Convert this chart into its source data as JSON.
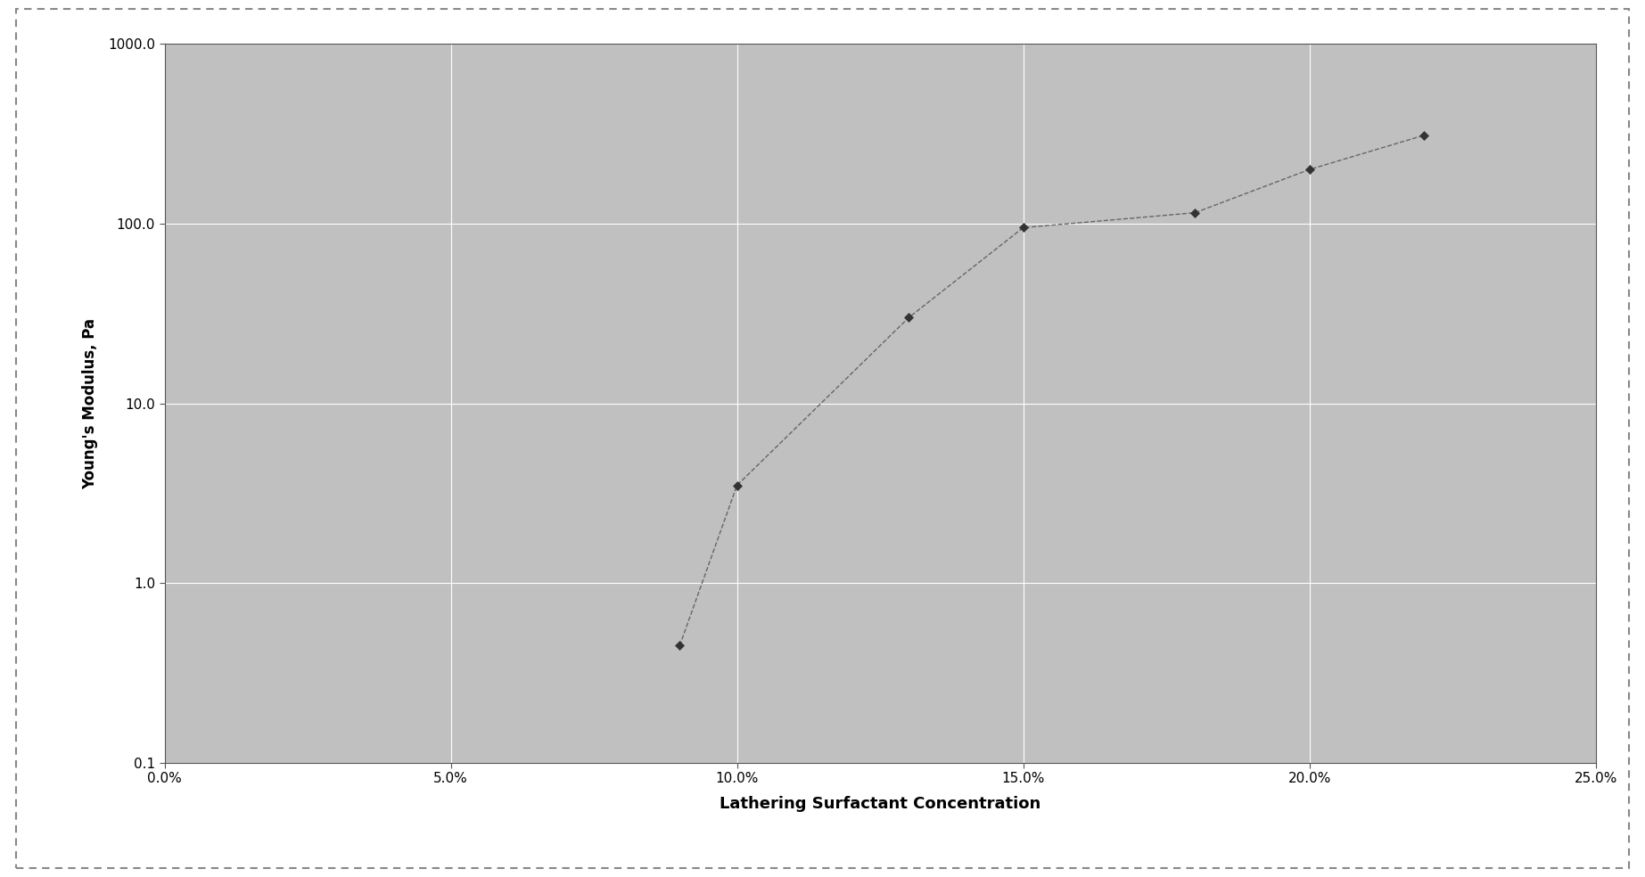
{
  "x": [
    0.09,
    0.1,
    0.13,
    0.15,
    0.18,
    0.2,
    0.22
  ],
  "y": [
    0.45,
    3.5,
    30,
    95,
    115,
    200,
    310
  ],
  "xlabel": "Lathering Surfactant Concentration",
  "ylabel": "Young's Modulus, Pa",
  "xlim": [
    0.0,
    0.25
  ],
  "ylim": [
    0.1,
    1000.0
  ],
  "xticks": [
    0.0,
    0.05,
    0.1,
    0.15,
    0.2,
    0.25
  ],
  "yticks": [
    0.1,
    1.0,
    10.0,
    100.0,
    1000.0
  ],
  "ytick_labels": [
    "0.1",
    "1.0",
    "10.0",
    "100.0",
    "1000.0"
  ],
  "line_color": "#666666",
  "marker": "D",
  "marker_color": "#333333",
  "marker_size": 5,
  "line_style": "--",
  "line_width": 1.0,
  "plot_bg_color": "#b8b8b8",
  "fig_bg_color": "#ffffff",
  "grid_color": "#ffffff",
  "xlabel_fontsize": 13,
  "ylabel_fontsize": 12,
  "tick_fontsize": 11,
  "label_fontweight": "bold"
}
